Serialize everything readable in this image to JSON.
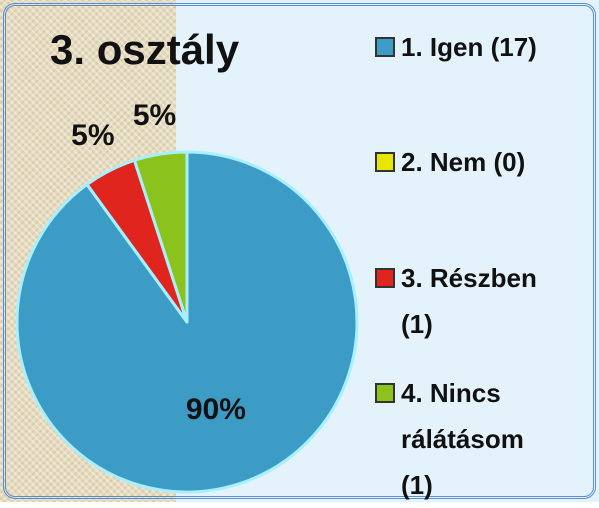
{
  "chart_data": {
    "type": "pie",
    "title": "3. osztály",
    "categories": [
      "1. Igen (17)",
      "2. Nem (0)",
      "3. Részben (1)",
      "4. Nincs rálátásom (1)"
    ],
    "values": [
      90,
      0,
      5,
      5
    ],
    "value_labels": [
      "90%",
      null,
      "5%",
      "5%"
    ],
    "colors": [
      "#3c9cc6",
      "#e6e600",
      "#e0241e",
      "#8cc21c"
    ],
    "legend": "right"
  }
}
